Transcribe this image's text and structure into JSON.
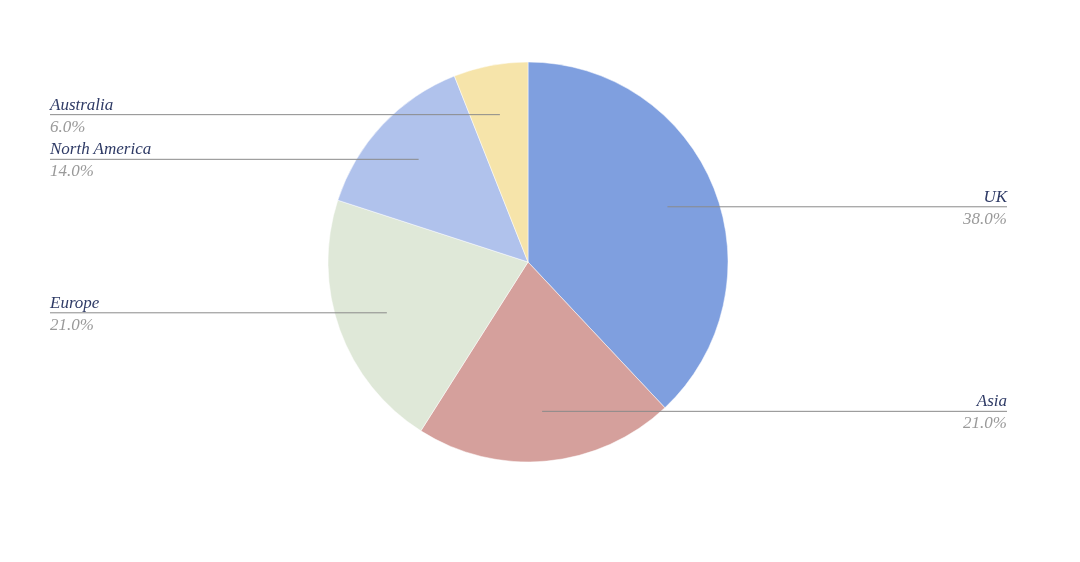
{
  "chart_data": {
    "type": "pie",
    "categories": [
      "UK",
      "Asia",
      "Europe",
      "North America",
      "Australia"
    ],
    "values": [
      38,
      21,
      21,
      14,
      6
    ],
    "colors": [
      "#7f9fdf",
      "#d5a09c",
      "#dfe8d8",
      "#b0c2ec",
      "#f6e4aa"
    ],
    "value_labels": [
      "38.0%",
      "21.0%",
      "21.0%",
      "14.0%",
      "6.0%"
    ]
  }
}
